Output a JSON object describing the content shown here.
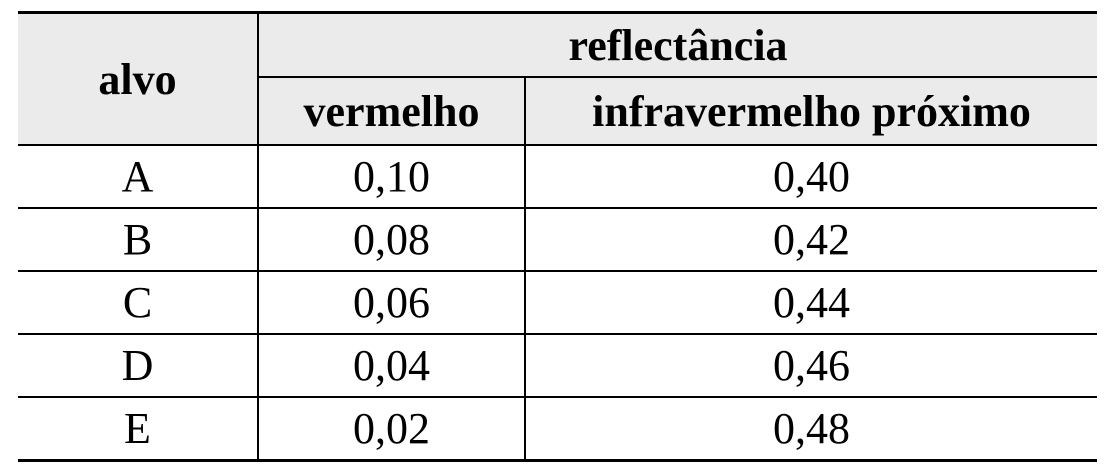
{
  "table": {
    "header": {
      "first": "alvo",
      "group": "reflectância",
      "columns": [
        "vermelho",
        "infravermelho próximo"
      ]
    },
    "rows": [
      [
        "A",
        "0,10",
        "0,40"
      ],
      [
        "B",
        "0,08",
        "0,42"
      ],
      [
        "C",
        "0,06",
        "0,44"
      ],
      [
        "D",
        "0,04",
        "0,46"
      ],
      [
        "E",
        "0,02",
        "0,48"
      ]
    ]
  }
}
